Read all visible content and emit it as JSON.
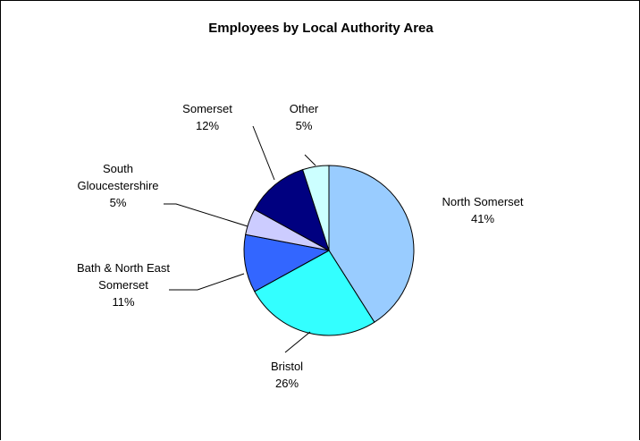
{
  "chart_data": {
    "type": "pie",
    "title": "Employees by Local Authority Area",
    "slices": [
      {
        "label": [
          "North Somerset"
        ],
        "value": 41,
        "percent_label": "41%",
        "color": "#99ccff"
      },
      {
        "label": [
          "Bristol"
        ],
        "value": 26,
        "percent_label": "26%",
        "color": "#33ffff"
      },
      {
        "label": [
          "Bath & North East",
          "Somerset"
        ],
        "value": 11,
        "percent_label": "11%",
        "color": "#3366ff"
      },
      {
        "label": [
          "South",
          "Gloucestershire"
        ],
        "value": 5,
        "percent_label": "5%",
        "color": "#ccccff"
      },
      {
        "label": [
          "Somerset"
        ],
        "value": 12,
        "percent_label": "12%",
        "color": "#000080"
      },
      {
        "label": [
          "Other"
        ],
        "value": 5,
        "percent_label": "5%",
        "color": "#ccffff"
      }
    ],
    "start_angle": "12 o'clock",
    "direction": "clockwise",
    "legend": "none",
    "border_color": "#000000"
  }
}
